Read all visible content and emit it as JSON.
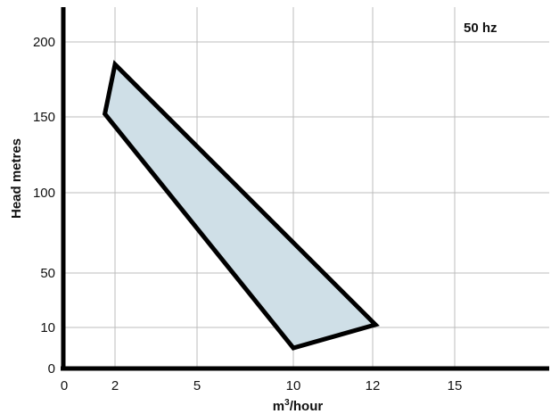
{
  "chart_data": {
    "type": "area",
    "annotation": "50 hz",
    "xlabel_main": "m",
    "xlabel_sup": "3",
    "xlabel_rest": "/hour",
    "ylabel": "Head metres",
    "x_ticks": [
      0,
      2,
      5,
      10,
      12,
      15
    ],
    "y_ticks": [
      0,
      10,
      50,
      100,
      150,
      200
    ],
    "grid": true,
    "region": {
      "x": [
        2.0,
        12.1,
        10.0,
        1.6
      ],
      "y": [
        185,
        12,
        5,
        152
      ]
    },
    "colors": {
      "fill": "#cfdfe7",
      "outline": "#000000",
      "grid": "#bcbcbc",
      "axis": "#000000"
    }
  }
}
